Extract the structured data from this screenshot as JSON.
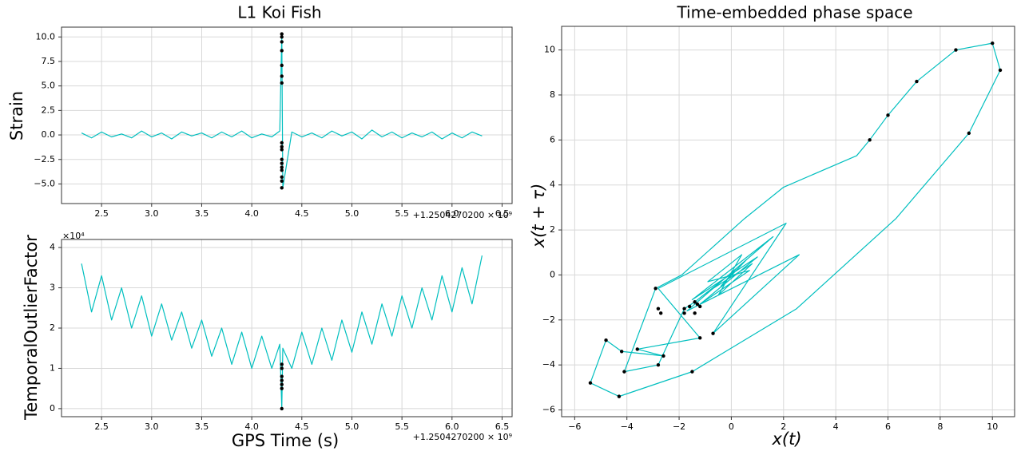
{
  "chart_data": [
    {
      "type": "line",
      "title": "L1 Koi Fish",
      "ylabel": "Strain",
      "x_offset": "+1.2504270200 × 10⁹",
      "xlim": [
        2.1,
        6.6
      ],
      "ylim": [
        -7,
        11
      ],
      "grid": true,
      "xticks": [
        2.5,
        {
          "value": 3,
          "label": "3.0"
        },
        3.5,
        {
          "value": 4,
          "label": "4.0"
        },
        4.5,
        {
          "value": 5,
          "label": "5.0"
        },
        5.5,
        {
          "value": 6,
          "label": "6.0"
        },
        6.5
      ],
      "yticks": [
        {
          "value": -5,
          "label": "−5.0"
        },
        {
          "value": -2.5,
          "label": "−2.5"
        },
        {
          "value": 0,
          "label": "0.0"
        },
        2.5,
        {
          "value": 5,
          "label": "5.0"
        },
        7.5,
        {
          "value": 10,
          "label": "10.0"
        }
      ],
      "series": [
        {
          "kind": "line",
          "color": "#00bfbf",
          "x": [
            2.3,
            2.4,
            2.5,
            2.6,
            2.7,
            2.8,
            2.9,
            3.0,
            3.1,
            3.2,
            3.3,
            3.4,
            3.5,
            3.6,
            3.7,
            3.8,
            3.9,
            4.0,
            4.1,
            4.2,
            4.28,
            4.3,
            4.31,
            4.4,
            4.5,
            4.6,
            4.7,
            4.8,
            4.9,
            5.0,
            5.1,
            5.2,
            5.3,
            5.4,
            5.5,
            5.6,
            5.7,
            5.8,
            5.9,
            6.0,
            6.1,
            6.2,
            6.3
          ],
          "values": [
            0.2,
            -0.3,
            0.3,
            -0.2,
            0.1,
            -0.3,
            0.4,
            -0.2,
            0.2,
            -0.4,
            0.3,
            -0.1,
            0.2,
            -0.3,
            0.3,
            -0.2,
            0.4,
            -0.3,
            0.1,
            -0.2,
            0.4,
            10.3,
            -5.4,
            0.3,
            -0.2,
            0.2,
            -0.3,
            0.4,
            -0.1,
            0.3,
            -0.4,
            0.5,
            -0.2,
            0.3,
            -0.3,
            0.2,
            -0.2,
            0.3,
            -0.4,
            0.2,
            -0.3,
            0.3,
            -0.1
          ]
        },
        {
          "kind": "scatter",
          "color": "#000000",
          "x": [
            4.3,
            4.3,
            4.3,
            4.3,
            4.3,
            4.3,
            4.3,
            4.3,
            4.3,
            4.3,
            4.3,
            4.3,
            4.3,
            4.3,
            4.3,
            4.3,
            4.3
          ],
          "values": [
            10.3,
            10.0,
            9.5,
            8.6,
            7.1,
            6.0,
            5.3,
            -0.8,
            -1.2,
            -1.5,
            -2.5,
            -2.9,
            -3.3,
            -3.6,
            -4.3,
            -4.7,
            -5.4
          ]
        }
      ]
    },
    {
      "type": "line",
      "ylabel": "TemporalOutlierFactor",
      "xlabel": "GPS Time (s)",
      "x_offset": "+1.2504270200 × 10⁹",
      "y_offset": "×10⁴",
      "xlim": [
        2.1,
        6.6
      ],
      "ylim": [
        -0.2,
        4.2
      ],
      "grid": true,
      "xticks": [
        2.5,
        {
          "value": 3,
          "label": "3.0"
        },
        3.5,
        {
          "value": 4,
          "label": "4.0"
        },
        4.5,
        {
          "value": 5,
          "label": "5.0"
        },
        5.5,
        {
          "value": 6,
          "label": "6.0"
        },
        6.5
      ],
      "yticks": [
        0,
        1,
        2,
        3,
        4
      ],
      "series": [
        {
          "kind": "line",
          "color": "#00bfbf",
          "x": [
            2.3,
            2.4,
            2.5,
            2.6,
            2.7,
            2.8,
            2.9,
            3.0,
            3.1,
            3.2,
            3.3,
            3.4,
            3.5,
            3.6,
            3.7,
            3.8,
            3.9,
            4.0,
            4.1,
            4.2,
            4.28,
            4.3,
            4.31,
            4.4,
            4.5,
            4.6,
            4.7,
            4.8,
            4.9,
            5.0,
            5.1,
            5.2,
            5.3,
            5.4,
            5.5,
            5.6,
            5.7,
            5.8,
            5.9,
            6.0,
            6.1,
            6.2,
            6.3
          ],
          "values": [
            3.6,
            2.4,
            3.3,
            2.2,
            3.0,
            2.0,
            2.8,
            1.8,
            2.6,
            1.7,
            2.4,
            1.5,
            2.2,
            1.3,
            2.0,
            1.1,
            1.9,
            1.0,
            1.8,
            1.0,
            1.6,
            0.0,
            1.5,
            1.0,
            1.9,
            1.1,
            2.0,
            1.2,
            2.2,
            1.4,
            2.4,
            1.6,
            2.6,
            1.8,
            2.8,
            2.0,
            3.0,
            2.2,
            3.3,
            2.4,
            3.5,
            2.6,
            3.8
          ]
        },
        {
          "kind": "scatter",
          "color": "#000000",
          "x": [
            4.3,
            4.3,
            4.3,
            4.3,
            4.3,
            4.3,
            4.3
          ],
          "values": [
            0.0,
            0.5,
            0.6,
            0.7,
            0.8,
            1.0,
            1.1
          ]
        }
      ]
    },
    {
      "type": "line",
      "title": "Time-embedded phase space",
      "xlabel": "x(t)",
      "ylabel": "x(t + τ)",
      "xlim": [
        -6.5,
        10.85
      ],
      "ylim": [
        -6.3,
        11.05
      ],
      "grid": true,
      "xticks": [
        {
          "value": -6,
          "label": "−6"
        },
        {
          "value": -4,
          "label": "−4"
        },
        {
          "value": -2,
          "label": "−2"
        },
        0,
        2,
        4,
        6,
        8,
        10
      ],
      "yticks": [
        {
          "value": -6,
          "label": "−6"
        },
        {
          "value": -4,
          "label": "−4"
        },
        {
          "value": -2,
          "label": "−2"
        },
        0,
        2,
        4,
        6,
        8,
        10
      ],
      "series": [
        {
          "kind": "line",
          "color": "#00bfbf",
          "x": [
            0.2,
            -0.4,
            0.6,
            -0.7,
            0.8,
            -0.5,
            0.4,
            -0.9,
            0.7,
            -1.2,
            1.0,
            -1.5,
            1.6,
            -1.7,
            2.6,
            -0.7,
            2.1,
            -2.8,
            -1.2,
            -3.6,
            -2.6,
            -4.2,
            -4.8,
            -5.4,
            -4.3,
            -1.5,
            2.5,
            6.3,
            9.1,
            10.3,
            10.0,
            8.6,
            7.1,
            6.0,
            5.3,
            4.8,
            2.0,
            0.5,
            -1.9,
            -2.9,
            -4.1,
            -2.8,
            -1.8,
            -1.4,
            -0.3
          ],
          "values": [
            0.3,
            -0.5,
            0.7,
            -0.6,
            0.5,
            -0.9,
            0.9,
            -0.3,
            0.2,
            -1.3,
            0.8,
            -1.1,
            1.7,
            -1.6,
            0.9,
            -2.6,
            2.3,
            -0.6,
            -2.8,
            -3.3,
            -3.6,
            -3.4,
            -2.9,
            -4.8,
            -5.4,
            -4.3,
            -1.5,
            2.5,
            6.3,
            9.1,
            10.3,
            10.0,
            8.6,
            7.1,
            6.0,
            5.3,
            3.9,
            2.5,
            0.0,
            -0.6,
            -4.3,
            -4.0,
            -1.5,
            -1.2,
            -0.2
          ]
        },
        {
          "kind": "scatter",
          "color": "#000000",
          "x": [
            10.3,
            10.0,
            8.6,
            7.1,
            6.0,
            5.3,
            9.1,
            -5.4,
            -4.3,
            -4.8,
            -4.1,
            -4.2,
            -3.6,
            -2.8,
            -2.6,
            -1.5,
            -1.2,
            -0.7,
            -2.9,
            -2.8,
            -2.7,
            -1.8,
            -1.8,
            -1.6,
            -1.4,
            -1.3,
            -1.2,
            -1.4
          ],
          "values": [
            9.1,
            10.3,
            10.0,
            8.6,
            7.1,
            6.0,
            6.3,
            -4.8,
            -5.4,
            -2.9,
            -4.3,
            -3.4,
            -3.3,
            -4.0,
            -3.6,
            -4.3,
            -2.8,
            -2.6,
            -0.6,
            -1.5,
            -1.7,
            -1.7,
            -1.5,
            -1.4,
            -1.2,
            -1.3,
            -1.4,
            -1.7
          ]
        }
      ]
    }
  ]
}
